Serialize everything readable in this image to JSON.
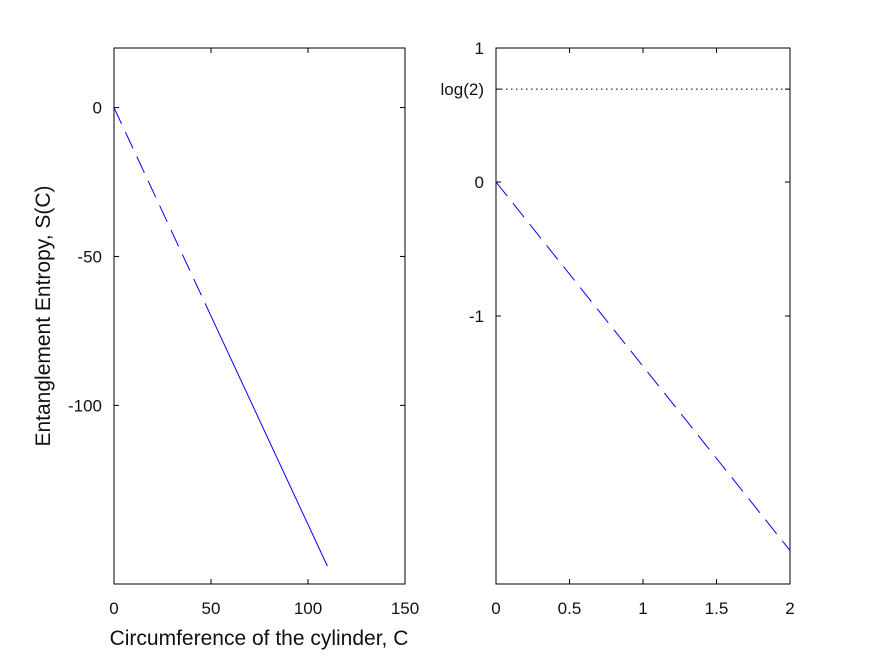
{
  "chart_data": [
    {
      "type": "line",
      "xlabel": "Circumference of the cylinder, C",
      "ylabel": "Entanglement Entropy, S(C)",
      "xlim": [
        0,
        150
      ],
      "ylim": [
        -160,
        20
      ],
      "xticks": [
        0,
        50,
        100,
        150
      ],
      "xtick_labels": [
        "0",
        "50",
        "100",
        "150"
      ],
      "yticks": [
        0,
        -50,
        -100
      ],
      "ytick_labels": [
        "0",
        "-50",
        "-100"
      ],
      "grid": false,
      "series": [
        {
          "name": "dashed segment",
          "style": "dashed",
          "color": "#0000ff",
          "x": [
            0,
            49.5
          ],
          "y": [
            0,
            -69.3
          ]
        },
        {
          "name": "solid segment",
          "style": "solid",
          "color": "#0000ff",
          "x": [
            49.5,
            110
          ],
          "y": [
            -69.3,
            -154
          ]
        }
      ]
    },
    {
      "type": "line",
      "xlabel": "",
      "ylabel": "",
      "xlim": [
        0,
        2
      ],
      "ylim": [
        -3,
        1
      ],
      "xticks": [
        0,
        0.5,
        1,
        1.5,
        2
      ],
      "xtick_labels": [
        "0",
        "0.5",
        "1",
        "1.5",
        "2"
      ],
      "yticks": [
        1,
        0.693147,
        0,
        -1
      ],
      "ytick_labels": [
        "1",
        "log(2)",
        "0",
        "-1"
      ],
      "grid": false,
      "series": [
        {
          "name": "dashed line",
          "style": "dashed",
          "color": "#0000ff",
          "x": [
            0,
            2
          ],
          "y": [
            0,
            -2.75
          ]
        },
        {
          "name": "log(2) reference",
          "style": "dotted",
          "color": "#000000",
          "x": [
            0,
            2
          ],
          "y": [
            0.693147,
            0.693147
          ]
        }
      ]
    }
  ]
}
